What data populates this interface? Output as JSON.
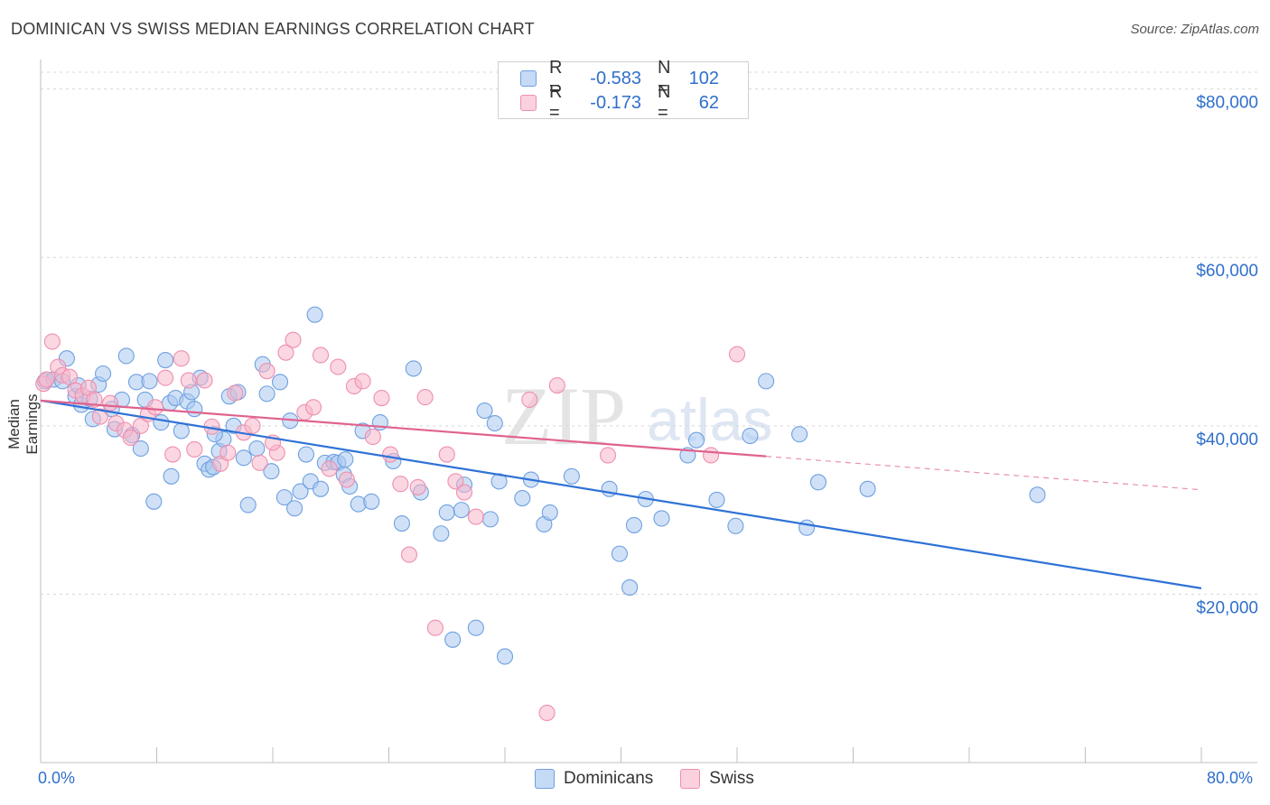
{
  "title": "DOMINICAN VS SWISS MEDIAN EARNINGS CORRELATION CHART",
  "source": "Source: ZipAtlas.com",
  "watermark": "ZIPatlas",
  "legend": {
    "rows": [
      {
        "r_label": "R =",
        "r_value": "-0.583",
        "n_label": "N =",
        "n_value": "102",
        "color": "#a9c8f0"
      },
      {
        "r_label": "R =",
        "r_value": "-0.173",
        "n_label": "N =",
        "n_value": "62",
        "color": "#f7b6cb"
      }
    ]
  },
  "x_tick_left": "0.0%",
  "x_tick_right": "80.0%",
  "bottom_legend": [
    {
      "label": "Dominicans",
      "color": "#a9c8f0"
    },
    {
      "label": "Swiss",
      "color": "#f7b6cb"
    }
  ],
  "chart_data": {
    "type": "scatter",
    "title": "DOMINICAN VS SWISS MEDIAN EARNINGS CORRELATION CHART",
    "xlabel": "",
    "ylabel": "Median Earnings",
    "xlim": [
      0,
      80
    ],
    "ylim": [
      0,
      82000
    ],
    "y_ticks": [
      {
        "value": 20000,
        "label": "$20,000"
      },
      {
        "value": 40000,
        "label": "$40,000"
      },
      {
        "value": 60000,
        "label": "$60,000"
      },
      {
        "value": 80000,
        "label": "$80,000"
      }
    ],
    "grid": true,
    "series": [
      {
        "name": "Dominicans",
        "color": "#6fa0e0",
        "fill": "#a9c8f0",
        "line_color": "#2f72d6",
        "trend": {
          "x0": 0,
          "y0": 43000,
          "x1": 80,
          "y1": 20700,
          "dashed_from": 80
        },
        "points": [
          [
            0.3,
            45300
          ],
          [
            0.9,
            45500
          ],
          [
            1.5,
            45300
          ],
          [
            1.8,
            48000
          ],
          [
            2.4,
            43500
          ],
          [
            2.6,
            44800
          ],
          [
            2.8,
            42500
          ],
          [
            3.4,
            43200
          ],
          [
            3.6,
            40800
          ],
          [
            4.0,
            44900
          ],
          [
            4.3,
            46200
          ],
          [
            4.9,
            42000
          ],
          [
            5.1,
            39600
          ],
          [
            5.6,
            43100
          ],
          [
            5.9,
            48300
          ],
          [
            6.3,
            38900
          ],
          [
            6.6,
            45200
          ],
          [
            6.9,
            37300
          ],
          [
            7.2,
            43100
          ],
          [
            7.5,
            45300
          ],
          [
            7.8,
            31000
          ],
          [
            8.3,
            40400
          ],
          [
            8.6,
            47800
          ],
          [
            8.9,
            42700
          ],
          [
            9.3,
            43300
          ],
          [
            9.7,
            39400
          ],
          [
            10.1,
            42900
          ],
          [
            10.4,
            44000
          ],
          [
            10.6,
            42000
          ],
          [
            11.0,
            45700
          ],
          [
            11.3,
            35500
          ],
          [
            11.6,
            34800
          ],
          [
            11.9,
            35100
          ],
          [
            12.3,
            37000
          ],
          [
            12.6,
            38400
          ],
          [
            13.0,
            43500
          ],
          [
            13.3,
            40000
          ],
          [
            13.6,
            44000
          ],
          [
            14.0,
            36200
          ],
          [
            14.3,
            30600
          ],
          [
            14.9,
            37300
          ],
          [
            15.3,
            47300
          ],
          [
            15.6,
            43800
          ],
          [
            15.9,
            34600
          ],
          [
            16.5,
            45200
          ],
          [
            16.8,
            31500
          ],
          [
            17.2,
            40600
          ],
          [
            17.5,
            30200
          ],
          [
            17.9,
            32200
          ],
          [
            18.3,
            36600
          ],
          [
            18.6,
            33400
          ],
          [
            18.9,
            53200
          ],
          [
            19.3,
            32500
          ],
          [
            19.6,
            35600
          ],
          [
            20.2,
            35700
          ],
          [
            20.5,
            35600
          ],
          [
            20.9,
            34200
          ],
          [
            21.3,
            32800
          ],
          [
            21.9,
            30700
          ],
          [
            22.2,
            39400
          ],
          [
            22.8,
            31000
          ],
          [
            23.4,
            40400
          ],
          [
            24.3,
            35800
          ],
          [
            24.9,
            28400
          ],
          [
            25.7,
            46800
          ],
          [
            26.2,
            32100
          ],
          [
            27.6,
            27200
          ],
          [
            28.0,
            29700
          ],
          [
            28.4,
            14600
          ],
          [
            29.0,
            30000
          ],
          [
            29.2,
            33000
          ],
          [
            30.6,
            41800
          ],
          [
            31.0,
            28900
          ],
          [
            31.3,
            40300
          ],
          [
            31.6,
            33400
          ],
          [
            33.2,
            31400
          ],
          [
            33.8,
            33600
          ],
          [
            34.7,
            28300
          ],
          [
            35.1,
            29700
          ],
          [
            36.6,
            34000
          ],
          [
            39.2,
            32500
          ],
          [
            39.9,
            24800
          ],
          [
            40.6,
            20800
          ],
          [
            40.9,
            28200
          ],
          [
            41.7,
            31300
          ],
          [
            42.8,
            29000
          ],
          [
            44.6,
            36500
          ],
          [
            45.2,
            38300
          ],
          [
            46.6,
            31200
          ],
          [
            47.9,
            28100
          ],
          [
            48.9,
            38800
          ],
          [
            50.0,
            45300
          ],
          [
            52.3,
            39000
          ],
          [
            52.8,
            27900
          ],
          [
            53.6,
            33300
          ],
          [
            57.0,
            32500
          ],
          [
            68.7,
            31800
          ],
          [
            32.0,
            12600
          ],
          [
            30.0,
            16000
          ],
          [
            21.0,
            36000
          ],
          [
            9.0,
            34000
          ],
          [
            12.0,
            39000
          ]
        ]
      },
      {
        "name": "Swiss",
        "color": "#ee8fae",
        "fill": "#f7b6cb",
        "line_color": "#e0628e",
        "trend": {
          "x0": 0,
          "y0": 43000,
          "x1": 80,
          "y1": 32400,
          "dashed_from": 50
        },
        "points": [
          [
            0.2,
            45000
          ],
          [
            0.4,
            45500
          ],
          [
            0.8,
            50000
          ],
          [
            1.2,
            47000
          ],
          [
            1.5,
            46000
          ],
          [
            2.0,
            45800
          ],
          [
            2.4,
            44200
          ],
          [
            2.9,
            43600
          ],
          [
            3.3,
            44500
          ],
          [
            3.7,
            43100
          ],
          [
            4.1,
            41100
          ],
          [
            4.8,
            42700
          ],
          [
            5.2,
            40300
          ],
          [
            5.8,
            39500
          ],
          [
            6.2,
            38600
          ],
          [
            6.9,
            40000
          ],
          [
            7.4,
            41400
          ],
          [
            7.9,
            42200
          ],
          [
            8.6,
            45700
          ],
          [
            9.1,
            36600
          ],
          [
            9.7,
            48000
          ],
          [
            10.2,
            45400
          ],
          [
            10.6,
            37200
          ],
          [
            11.3,
            45400
          ],
          [
            11.8,
            39900
          ],
          [
            12.4,
            35500
          ],
          [
            12.9,
            36800
          ],
          [
            13.4,
            43900
          ],
          [
            14.0,
            39200
          ],
          [
            14.6,
            40000
          ],
          [
            15.1,
            35600
          ],
          [
            15.6,
            46500
          ],
          [
            16.3,
            36800
          ],
          [
            16.9,
            48700
          ],
          [
            17.4,
            50200
          ],
          [
            18.2,
            41600
          ],
          [
            18.8,
            42200
          ],
          [
            19.3,
            48400
          ],
          [
            19.9,
            34900
          ],
          [
            20.5,
            47000
          ],
          [
            21.1,
            33600
          ],
          [
            21.6,
            44700
          ],
          [
            22.2,
            45300
          ],
          [
            22.9,
            38700
          ],
          [
            23.5,
            43300
          ],
          [
            24.1,
            36600
          ],
          [
            24.8,
            33100
          ],
          [
            25.4,
            24700
          ],
          [
            26.0,
            32700
          ],
          [
            26.5,
            43400
          ],
          [
            27.2,
            16000
          ],
          [
            28.0,
            36600
          ],
          [
            28.6,
            33400
          ],
          [
            29.2,
            32100
          ],
          [
            30.0,
            29200
          ],
          [
            33.7,
            43100
          ],
          [
            34.9,
            5900
          ],
          [
            35.6,
            44800
          ],
          [
            39.1,
            36500
          ],
          [
            48.0,
            48500
          ],
          [
            46.2,
            36500
          ],
          [
            16.0,
            38000
          ]
        ]
      }
    ]
  }
}
